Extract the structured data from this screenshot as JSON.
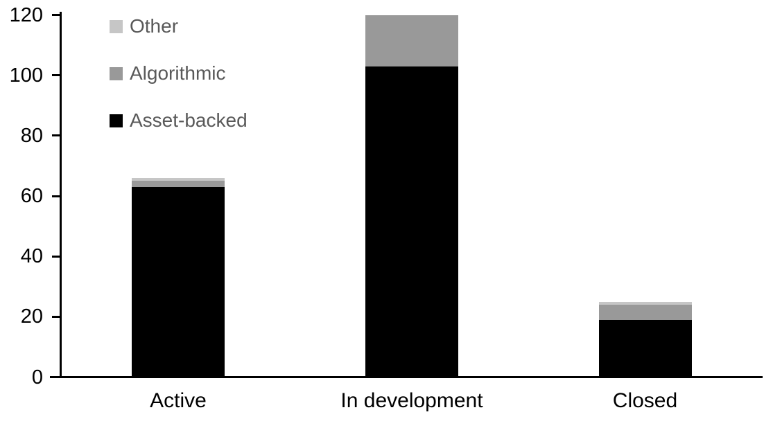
{
  "chart_data": {
    "type": "bar",
    "stacked": true,
    "title": "",
    "xlabel": "",
    "ylabel": "",
    "categories": [
      "Active",
      "In development",
      "Closed"
    ],
    "series": [
      {
        "name": "Asset-backed",
        "color": "#000000",
        "values": [
          63,
          103,
          19
        ]
      },
      {
        "name": "Algorithmic",
        "color": "#999999",
        "values": [
          2,
          17,
          5
        ]
      },
      {
        "name": "Other",
        "color": "#c6c6c6",
        "values": [
          1,
          0,
          1
        ]
      }
    ],
    "totals": [
      66,
      120,
      25
    ],
    "ylim": [
      0,
      120
    ],
    "yticks": [
      0,
      20,
      40,
      60,
      80,
      100,
      120
    ],
    "grid": false,
    "legend": {
      "position": "top-left",
      "order_top_to_bottom": [
        "Other",
        "Algorithmic",
        "Asset-backed"
      ],
      "text_color": "#595959"
    },
    "colors": {
      "axis": "#000000",
      "tick_label": "#000000",
      "category_label": "#000000"
    }
  }
}
